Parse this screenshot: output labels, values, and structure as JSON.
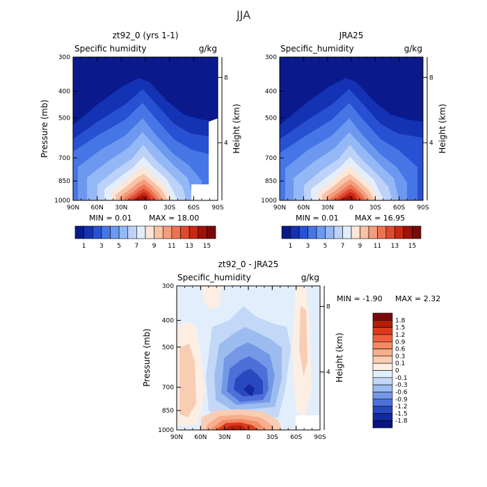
{
  "page": {
    "title": "JJA"
  },
  "chart_data": [
    {
      "type": "heatmap",
      "title": "zt92_0 (yrs 1-1)",
      "variable": "Specific humidity",
      "units": "g/kg",
      "ylabel": "Pressure (mb)",
      "y2label": "Height (km)",
      "x_ticks": [
        "90N",
        "60N",
        "30N",
        "0",
        "30S",
        "60S",
        "90S"
      ],
      "y_ticks": [
        "300",
        "400",
        "500",
        "700",
        "850",
        "1000"
      ],
      "y2_ticks": [
        "8",
        "4"
      ],
      "min_text": "MIN =    0.01",
      "max_text": "MAX =  18.00",
      "colorbar_labels": [
        "1",
        "3",
        "5",
        "7",
        "9",
        "11",
        "13",
        "15"
      ],
      "colorbar_colors": [
        "#0a1a8c",
        "#1432b4",
        "#2850d2",
        "#4676e6",
        "#6c98f0",
        "#94b8f6",
        "#bcd2f8",
        "#e4eefa",
        "#fce6d8",
        "#f8c2a6",
        "#f49c7c",
        "#ec7454",
        "#e04a30",
        "#c82814",
        "#a01206",
        "#780a0a"
      ],
      "panel": "top-left"
    },
    {
      "type": "heatmap",
      "title": "JRA25",
      "variable": "Specific_humidity",
      "units": "g/kg",
      "ylabel": "Pressure (mb)",
      "y2label": "Height (km)",
      "x_ticks": [
        "90N",
        "60N",
        "30N",
        "0",
        "30S",
        "60S",
        "90S"
      ],
      "y_ticks": [
        "300",
        "400",
        "500",
        "700",
        "850",
        "1000"
      ],
      "y2_ticks": [
        "8",
        "4"
      ],
      "min_text": "MIN =    0.01",
      "max_text": "MAX =  16.95",
      "colorbar_labels": [
        "1",
        "3",
        "5",
        "7",
        "9",
        "11",
        "13",
        "15"
      ],
      "colorbar_colors": [
        "#0a1a8c",
        "#1432b4",
        "#2850d2",
        "#4676e6",
        "#6c98f0",
        "#94b8f6",
        "#bcd2f8",
        "#e4eefa",
        "#fce6d8",
        "#f8c2a6",
        "#f49c7c",
        "#ec7454",
        "#e04a30",
        "#c82814",
        "#a01206",
        "#780a0a"
      ],
      "panel": "top-right"
    },
    {
      "type": "heatmap",
      "title": "zt92_0 - JRA25",
      "variable": "Specific_humidity",
      "units": "g/kg",
      "ylabel": "Pressure (mb)",
      "y2label": "Height (km)",
      "x_ticks": [
        "90N",
        "60N",
        "30N",
        "0",
        "30S",
        "60S",
        "90S"
      ],
      "y_ticks": [
        "300",
        "400",
        "500",
        "700",
        "850",
        "1000"
      ],
      "y2_ticks": [
        "8",
        "4"
      ],
      "min_text": "MIN =   -1.90",
      "max_text": "MAX =    2.32",
      "colorbar_labels": [
        "1.8",
        "1.5",
        "1.2",
        "0.9",
        "0.6",
        "0.3",
        "0.1",
        "0",
        "-0.1",
        "-0.3",
        "-0.6",
        "-0.9",
        "-1.2",
        "-1.5",
        "-1.8"
      ],
      "colorbar_colors": [
        "#780a0a",
        "#b41e0a",
        "#dc3a1c",
        "#f0603c",
        "#f48a64",
        "#f6ae8c",
        "#f8cdb4",
        "#fceee2",
        "#e2eefc",
        "#c2d8f6",
        "#9cbcf0",
        "#7498e6",
        "#4c70d8",
        "#2848c0",
        "#1428a0",
        "#0a1480"
      ],
      "panel": "bottom"
    }
  ]
}
